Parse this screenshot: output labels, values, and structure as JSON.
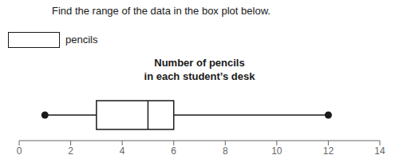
{
  "chart_data": {
    "type": "box",
    "title": "Number of pencils\nin each student’s desk",
    "annotations": [
      "Find the range of the data in the box plot below.",
      "pencils"
    ],
    "whisker_min": 1,
    "q1": 3,
    "median": 5,
    "q3": 6,
    "whisker_max": 12,
    "xlim": [
      0,
      14
    ],
    "xticks": [
      0,
      2,
      4,
      6,
      8,
      10,
      12,
      14
    ],
    "color": "#1a1a1a",
    "grid": false,
    "tick_labels": "x"
  }
}
